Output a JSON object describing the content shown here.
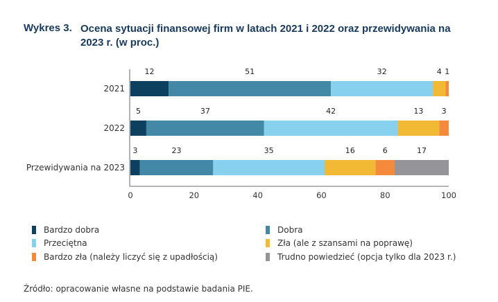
{
  "title": {
    "number": "Wykres 3.",
    "text": "Ocena sytuacji finansowej firm w latach 2021 i 2022 oraz przewidywania na 2023 r. (w proc.)"
  },
  "source": "Źródło: opracowanie własne na podstawie badania PIE.",
  "chart_data": {
    "type": "bar",
    "orientation": "horizontal",
    "stacked": true,
    "title": "Ocena sytuacji finansowej firm w latach 2021 i 2022 oraz przewidywania na 2023 r. (w proc.)",
    "xlabel": "",
    "ylabel": "",
    "xlim": [
      0,
      100
    ],
    "xticks": [
      0,
      20,
      40,
      60,
      80,
      100
    ],
    "grid": false,
    "legend_position": "bottom",
    "categories": [
      "2021",
      "2022",
      "Przewidywania na 2023"
    ],
    "series": [
      {
        "name": "Bardzo dobra",
        "color": "#0d3f5e",
        "values": [
          12,
          5,
          3
        ]
      },
      {
        "name": "Dobra",
        "color": "#4488a8",
        "values": [
          51,
          37,
          23
        ]
      },
      {
        "name": "Przeciętna",
        "color": "#87d1ef",
        "values": [
          32,
          42,
          35
        ]
      },
      {
        "name": "Zła (ale z szansami na poprawę)",
        "color": "#f2b935",
        "values": [
          4,
          13,
          16
        ]
      },
      {
        "name": "Bardzo zła (należy liczyć się z upadłością)",
        "color": "#f58a3c",
        "values": [
          1,
          3,
          6
        ]
      },
      {
        "name": "Trudno powiedzieć (opcja tylko dla 2023 r.)",
        "color": "#959499",
        "values": [
          0,
          0,
          17
        ]
      }
    ]
  }
}
